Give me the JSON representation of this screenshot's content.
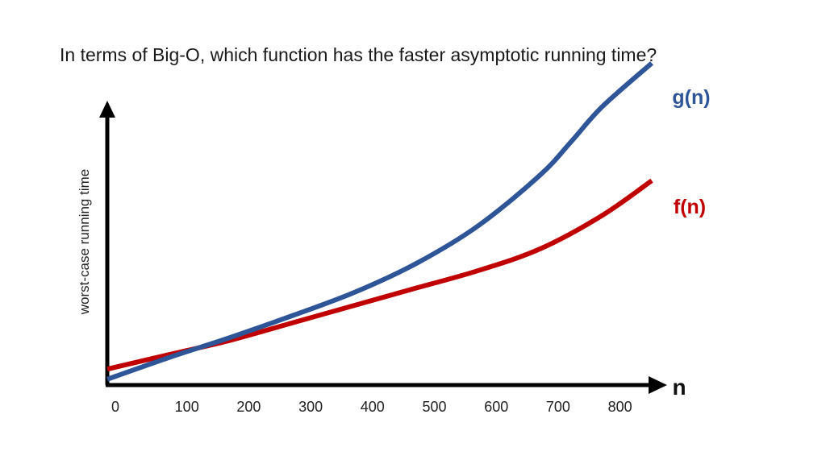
{
  "question": "In terms of Big-O, which function has the faster asymptotic running time?",
  "chart_data": {
    "type": "line",
    "title": "",
    "xlabel": "n",
    "ylabel": "worst-case running time",
    "xlim": [
      0,
      880
    ],
    "ylim": [
      0,
      10
    ],
    "x_ticks": [
      "0",
      "100",
      "200",
      "300",
      "400",
      "500",
      "600",
      "700",
      "800"
    ],
    "x_tick_values": [
      0,
      100,
      200,
      300,
      400,
      500,
      600,
      700,
      800
    ],
    "grid": false,
    "y_ticks_shown": false,
    "series": [
      {
        "name": "g(n)",
        "color": "#2e5597",
        "x": [
          0,
          100,
          200,
          300,
          400,
          500,
          600,
          700,
          750,
          800,
          880
        ],
        "y": [
          0.2,
          0.95,
          1.65,
          2.4,
          3.2,
          4.2,
          5.5,
          7.25,
          8.4,
          9.6,
          11.1
        ]
      },
      {
        "name": "f(n)",
        "color": "#c00000",
        "x": [
          0,
          100,
          200,
          300,
          400,
          500,
          600,
          700,
          800,
          880
        ],
        "y": [
          0.55,
          1.05,
          1.55,
          2.15,
          2.75,
          3.35,
          3.95,
          4.7,
          5.85,
          7.05
        ]
      }
    ]
  }
}
